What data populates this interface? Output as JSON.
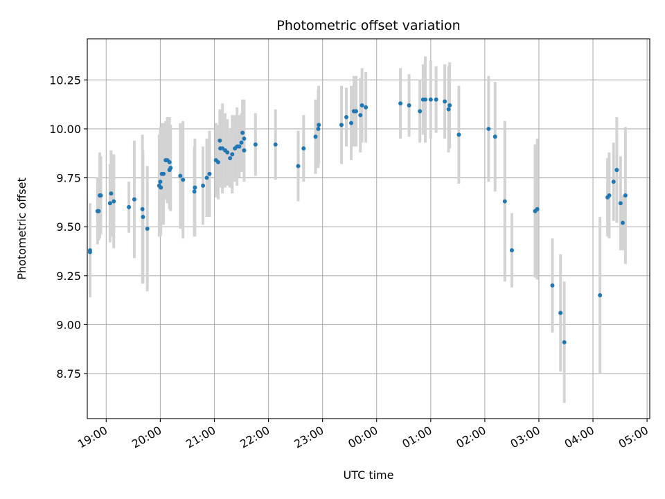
{
  "chart_data": {
    "type": "scatter",
    "title": "Photometric offset variation",
    "xlabel": "UTC time",
    "ylabel": "Photometric offset",
    "x_unit": "hours",
    "xlim": [
      18.65,
      29.05
    ],
    "ylim": [
      8.52,
      10.46
    ],
    "grid": true,
    "x_ticks": [
      {
        "value": 19,
        "label": "19:00"
      },
      {
        "value": 20,
        "label": "20:00"
      },
      {
        "value": 21,
        "label": "21:00"
      },
      {
        "value": 22,
        "label": "22:00"
      },
      {
        "value": 23,
        "label": "23:00"
      },
      {
        "value": 24,
        "label": "00:00"
      },
      {
        "value": 25,
        "label": "01:00"
      },
      {
        "value": 26,
        "label": "02:00"
      },
      {
        "value": 27,
        "label": "03:00"
      },
      {
        "value": 28,
        "label": "04:00"
      },
      {
        "value": 29,
        "label": "05:00"
      }
    ],
    "y_ticks": [
      {
        "value": 8.75,
        "label": "8.75"
      },
      {
        "value": 9.0,
        "label": "9.00"
      },
      {
        "value": 9.25,
        "label": "9.25"
      },
      {
        "value": 9.5,
        "label": "9.50"
      },
      {
        "value": 9.75,
        "label": "9.75"
      },
      {
        "value": 10.0,
        "label": "10.00"
      },
      {
        "value": 10.25,
        "label": "10.25"
      }
    ],
    "point_color": "#1f77b4",
    "errorbar_color": "#d3d3d3",
    "points": [
      [
        18.7,
        9.38,
        0.24
      ],
      [
        18.7,
        9.37,
        0.22
      ],
      [
        18.84,
        9.58,
        0.17
      ],
      [
        18.86,
        9.58,
        0.15
      ],
      [
        18.88,
        9.66,
        0.22
      ],
      [
        18.9,
        9.66,
        0.2
      ],
      [
        19.07,
        9.62,
        0.2
      ],
      [
        19.09,
        9.67,
        0.22
      ],
      [
        19.14,
        9.63,
        0.24
      ],
      [
        19.42,
        9.6,
        0.13
      ],
      [
        19.52,
        9.64,
        0.3
      ],
      [
        19.67,
        9.59,
        0.38
      ],
      [
        19.68,
        9.55,
        0.34
      ],
      [
        19.76,
        9.49,
        0.32
      ],
      [
        19.98,
        9.71,
        0.26
      ],
      [
        20.0,
        9.73,
        0.28
      ],
      [
        20.01,
        9.7,
        0.24
      ],
      [
        20.03,
        9.77,
        0.26
      ],
      [
        20.06,
        9.77,
        0.26
      ],
      [
        20.1,
        9.84,
        0.2
      ],
      [
        20.13,
        9.84,
        0.22
      ],
      [
        20.17,
        9.83,
        0.23
      ],
      [
        20.17,
        9.79,
        0.2
      ],
      [
        20.19,
        9.8,
        0.22
      ],
      [
        20.37,
        9.76,
        0.27
      ],
      [
        20.42,
        9.74,
        0.3
      ],
      [
        20.63,
        9.68,
        0.23
      ],
      [
        20.64,
        9.7,
        0.25
      ],
      [
        20.79,
        9.71,
        0.2
      ],
      [
        20.86,
        9.75,
        0.2
      ],
      [
        20.91,
        9.77,
        0.22
      ],
      [
        21.03,
        9.84,
        0.19
      ],
      [
        21.07,
        9.83,
        0.19
      ],
      [
        21.1,
        9.94,
        0.16
      ],
      [
        21.11,
        9.9,
        0.2
      ],
      [
        21.15,
        9.9,
        0.23
      ],
      [
        21.2,
        9.89,
        0.19
      ],
      [
        21.24,
        9.88,
        0.17
      ],
      [
        21.29,
        9.85,
        0.15
      ],
      [
        21.33,
        9.87,
        0.2
      ],
      [
        21.38,
        9.9,
        0.17
      ],
      [
        21.42,
        9.91,
        0.2
      ],
      [
        21.46,
        9.91,
        0.16
      ],
      [
        21.5,
        9.93,
        0.15
      ],
      [
        21.52,
        9.98,
        0.17
      ],
      [
        21.55,
        9.95,
        0.2
      ],
      [
        21.55,
        9.89,
        0.16
      ],
      [
        21.76,
        9.92,
        0.16
      ],
      [
        22.13,
        9.92,
        0.18
      ],
      [
        22.55,
        9.81,
        0.18
      ],
      [
        22.65,
        9.9,
        0.17
      ],
      [
        22.87,
        9.96,
        0.19
      ],
      [
        22.92,
        10.0,
        0.2
      ],
      [
        22.93,
        10.02,
        0.2
      ],
      [
        23.35,
        10.02,
        0.2
      ],
      [
        23.44,
        10.06,
        0.15
      ],
      [
        23.53,
        10.03,
        0.19
      ],
      [
        23.58,
        10.09,
        0.18
      ],
      [
        23.62,
        10.09,
        0.18
      ],
      [
        23.7,
        10.07,
        0.19
      ],
      [
        23.73,
        10.12,
        0.19
      ],
      [
        23.8,
        10.11,
        0.18
      ],
      [
        24.44,
        10.13,
        0.18
      ],
      [
        24.6,
        10.12,
        0.16
      ],
      [
        24.8,
        10.09,
        0.16
      ],
      [
        24.86,
        10.15,
        0.18
      ],
      [
        24.9,
        10.15,
        0.22
      ],
      [
        25.0,
        10.15,
        0.2
      ],
      [
        25.1,
        10.15,
        0.17
      ],
      [
        25.26,
        10.14,
        0.19
      ],
      [
        25.33,
        10.1,
        0.22
      ],
      [
        25.35,
        10.12,
        0.22
      ],
      [
        25.52,
        9.97,
        0.25
      ],
      [
        26.07,
        10.0,
        0.27
      ],
      [
        26.19,
        9.96,
        0.28
      ],
      [
        26.37,
        9.63,
        0.41
      ],
      [
        26.5,
        9.38,
        0.19
      ],
      [
        26.93,
        9.58,
        0.34
      ],
      [
        26.97,
        9.59,
        0.36
      ],
      [
        27.25,
        9.2,
        0.24
      ],
      [
        27.4,
        9.06,
        0.3
      ],
      [
        27.47,
        8.91,
        0.31
      ],
      [
        28.13,
        9.15,
        0.4
      ],
      [
        28.27,
        9.65,
        0.2
      ],
      [
        28.3,
        9.66,
        0.22
      ],
      [
        28.38,
        9.73,
        0.2
      ],
      [
        28.44,
        9.79,
        0.27
      ],
      [
        28.51,
        9.62,
        0.24
      ],
      [
        28.55,
        9.52,
        0.14
      ],
      [
        28.6,
        9.66,
        0.35
      ]
    ]
  }
}
